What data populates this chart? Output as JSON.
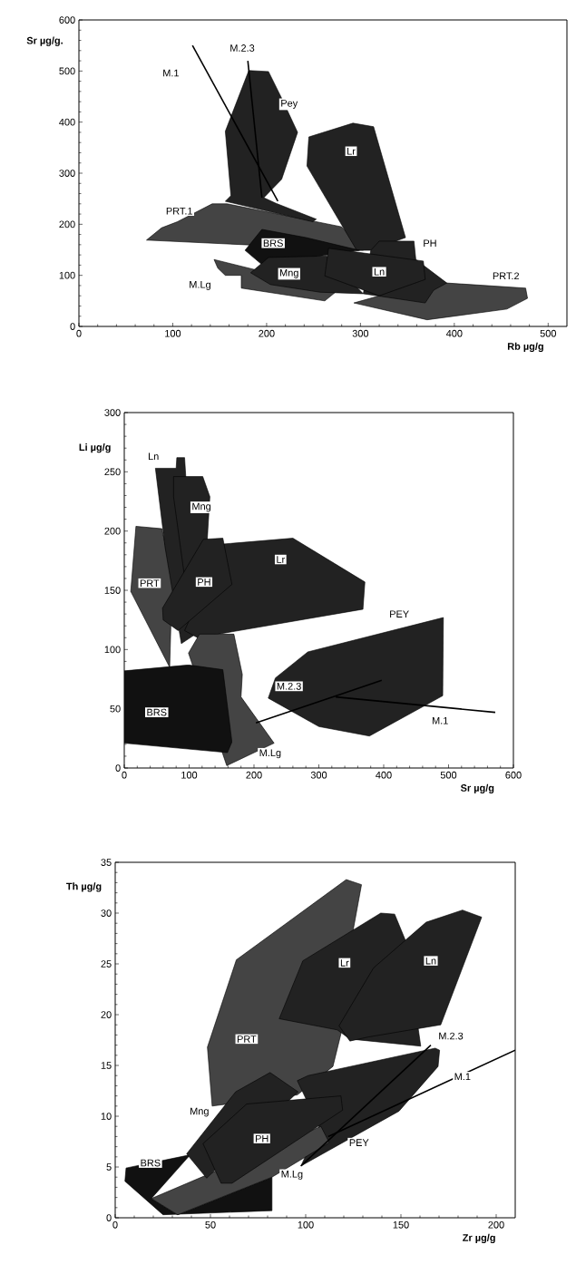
{
  "chart_data": [
    {
      "type": "area",
      "xlabel": "Rb µg/g",
      "ylabel": "Sr µg/g.",
      "xlim": [
        0,
        520
      ],
      "ylim": [
        0,
        600
      ],
      "xticks": [
        0,
        100,
        200,
        300,
        400,
        500
      ],
      "yticks": [
        0,
        100,
        200,
        300,
        400,
        500,
        600
      ],
      "series": [
        {
          "type": "area",
          "color": "#444444",
          "x": [
            293,
            320,
            392,
            476,
            478,
            456,
            371
          ],
          "values": [
            46,
            60,
            85,
            75,
            55,
            34,
            13
          ]
        },
        {
          "type": "area",
          "color": "#444444",
          "x": [
            72,
            88,
            105,
            142,
            158,
            280,
            303
          ],
          "values": [
            169,
            193,
            205,
            240,
            240,
            195,
            149
          ]
        },
        {
          "type": "area",
          "color": "#222222",
          "x": [
            156,
            181,
            202,
            216,
            233,
            216,
            197,
            210,
            253,
            249,
            156,
            162
          ],
          "values": [
            382,
            501,
            499,
            447,
            380,
            288,
            252,
            241,
            210,
            205,
            245,
            256
          ]
        },
        {
          "type": "area",
          "color": "#222222",
          "x": [
            245,
            292,
            314,
            348,
            311,
            296,
            243
          ],
          "values": [
            371,
            398,
            391,
            174,
            149,
            149,
            314
          ]
        },
        {
          "type": "area",
          "color": "#444444",
          "x": [
            144,
            148,
            156,
            173,
            173,
            262,
            276
          ],
          "values": [
            131,
            114,
            100,
            100,
            75,
            50,
            71
          ]
        },
        {
          "type": "area",
          "color": "#111111",
          "x": [
            177,
            195,
            242,
            299,
            195
          ],
          "values": [
            149,
            190,
            174,
            149,
            121
          ]
        },
        {
          "type": "area",
          "color": "#222222",
          "x": [
            183,
            202,
            264,
            303,
            257,
            204
          ],
          "values": [
            105,
            135,
            138,
            64,
            67,
            82
          ]
        },
        {
          "type": "area",
          "color": "#222222",
          "x": [
            311,
            320,
            357,
            359,
            392,
            378,
            369,
            303
          ],
          "values": [
            149,
            167,
            167,
            131,
            85,
            71,
            46,
            64
          ]
        },
        {
          "type": "area",
          "color": "#222222",
          "x": [
            266,
            367,
            369,
            320,
            262
          ],
          "values": [
            153,
            128,
            92,
            60,
            99
          ]
        },
        {
          "type": "line",
          "color": "#000000",
          "x": [
            121,
            212
          ],
          "values": [
            550,
            245
          ]
        },
        {
          "type": "line",
          "color": "#000000",
          "x": [
            180,
            195
          ],
          "values": [
            520,
            252
          ]
        }
      ],
      "annotations": [
        {
          "text": "M.1",
          "x": 98,
          "y": 496
        },
        {
          "text": "M.2.3",
          "x": 174,
          "y": 545
        },
        {
          "text": "Pey",
          "x": 224,
          "y": 435
        },
        {
          "text": "Lr",
          "x": 290,
          "y": 343
        },
        {
          "text": "PRT.1",
          "x": 107,
          "y": 226
        },
        {
          "text": "BRS",
          "x": 207,
          "y": 163
        },
        {
          "text": "PH",
          "x": 374,
          "y": 163
        },
        {
          "text": "Mng",
          "x": 224,
          "y": 103
        },
        {
          "text": "Ln",
          "x": 320,
          "y": 107
        },
        {
          "text": "M.Lg",
          "x": 129,
          "y": 80
        },
        {
          "text": "PRT.2",
          "x": 455,
          "y": 99
        }
      ]
    },
    {
      "type": "area",
      "xlabel": "Sr µg/g",
      "ylabel": "Li µg/g",
      "xlim": [
        0,
        600
      ],
      "ylim": [
        0,
        300
      ],
      "xticks": [
        0,
        100,
        200,
        300,
        400,
        500,
        600
      ],
      "yticks": [
        0,
        50,
        100,
        150,
        200,
        250,
        300
      ],
      "series": [
        {
          "type": "area",
          "color": "#444444",
          "x": [
            18,
            58,
            74,
            70,
            10
          ],
          "values": [
            204,
            202,
            161,
            85,
            149
          ]
        },
        {
          "type": "area",
          "color": "#222222",
          "x": [
            48,
            80,
            81,
            93,
            110,
            88,
            63
          ],
          "values": [
            253,
            253,
            262,
            262,
            113,
            105,
            186
          ]
        },
        {
          "type": "area",
          "color": "#222222",
          "x": [
            76,
            121,
            132,
            119,
            105,
            76
          ],
          "values": [
            246,
            246,
            229,
            113,
            113,
            229
          ]
        },
        {
          "type": "area",
          "color": "#222222",
          "x": [
            152,
            260,
            371,
            368,
            113,
            93
          ],
          "values": [
            189,
            194,
            157,
            134,
            110,
            116
          ]
        },
        {
          "type": "area",
          "color": "#222222",
          "x": [
            59,
            122,
            152,
            166,
            83,
            60
          ],
          "values": [
            135,
            193,
            194,
            155,
            116,
            125
          ]
        },
        {
          "type": "area",
          "color": "#444444",
          "x": [
            99,
            116,
            169,
            182,
            180,
            231,
            158
          ],
          "values": [
            97,
            113,
            113,
            79,
            60,
            21,
            2
          ]
        },
        {
          "type": "area",
          "color": "#111111",
          "x": [
            0,
            99,
            152,
            166,
            159,
            0
          ],
          "values": [
            82,
            87,
            83,
            22,
            13,
            21
          ]
        },
        {
          "type": "area",
          "color": "#222222",
          "x": [
            233,
            283,
            492,
            491,
            378,
            300,
            222
          ],
          "values": [
            76,
            98,
            127,
            61,
            27,
            35,
            59
          ]
        },
        {
          "type": "line",
          "color": "#000000",
          "x": [
            203,
            397
          ],
          "values": [
            38,
            74
          ]
        },
        {
          "type": "line",
          "color": "#000000",
          "x": [
            326,
            572
          ],
          "values": [
            60,
            47
          ]
        }
      ],
      "annotations": [
        {
          "text": "Ln",
          "x": 45,
          "y": 263
        },
        {
          "text": "Mng",
          "x": 119,
          "y": 220
        },
        {
          "text": "Lr",
          "x": 241,
          "y": 176
        },
        {
          "text": "PRT",
          "x": 39,
          "y": 156
        },
        {
          "text": "PH",
          "x": 123,
          "y": 157
        },
        {
          "text": "PEY",
          "x": 424,
          "y": 130
        },
        {
          "text": "M.2.3",
          "x": 254,
          "y": 69
        },
        {
          "text": "M.1",
          "x": 487,
          "y": 40
        },
        {
          "text": "BRS",
          "x": 50,
          "y": 47
        },
        {
          "text": "M.Lg",
          "x": 225,
          "y": 12
        }
      ]
    },
    {
      "type": "area",
      "xlabel": "Zr µg/g",
      "ylabel": "Th µg/g",
      "xlim": [
        0,
        210
      ],
      "ylim": [
        0,
        35
      ],
      "xticks": [
        0,
        50,
        100,
        150,
        200
      ],
      "yticks": [
        0,
        5,
        10,
        15,
        20,
        25,
        30,
        35
      ],
      "series": [
        {
          "type": "area",
          "color": "#444444",
          "x": [
            48.4,
            63.6,
            121.3,
            129.3,
            125.1,
            118.5,
            114.3,
            95.6,
            50.9
          ],
          "values": [
            16.8,
            25.4,
            33.3,
            32.8,
            28.5,
            18.1,
            14.9,
            12.1,
            11.0
          ]
        },
        {
          "type": "area",
          "color": "#222222",
          "x": [
            86.1,
            98.5,
            139.4,
            146.7,
            152.4,
            160.4,
            123.2,
            116.6
          ],
          "values": [
            19.6,
            25.3,
            30.0,
            29.9,
            27.3,
            16.9,
            17.6,
            18.5
          ]
        },
        {
          "type": "area",
          "color": "#222222",
          "x": [
            117.5,
            135.6,
            163.2,
            182.3,
            192.4,
            170.9,
            132.8,
            123.2
          ],
          "values": [
            18.9,
            24.6,
            29.1,
            30.3,
            29.6,
            19.0,
            17.8,
            17.4
          ]
        },
        {
          "type": "area",
          "color": "#222222",
          "x": [
            95.6,
            101.3,
            168,
            170.3,
            169.5,
            149,
            97.5,
            107
          ],
          "values": [
            13.5,
            14.0,
            16.7,
            16.5,
            14.9,
            10.5,
            5.1,
            9.0
          ]
        },
        {
          "type": "area",
          "color": "#111111",
          "x": [
            5.1,
            5.7,
            29,
            39.4,
            19,
            32.8,
            82.3,
            82.3,
            25.1
          ],
          "values": [
            3.6,
            4.9,
            5.8,
            6.2,
            1.9,
            0.3,
            4.0,
            0.7,
            0.3
          ]
        },
        {
          "type": "area",
          "color": "#444444",
          "x": [
            19,
            108,
            112.4,
            82.3,
            32.8
          ],
          "values": [
            1.9,
            9.0,
            7.4,
            4.0,
            0.3
          ]
        },
        {
          "type": "area",
          "color": "#222222",
          "x": [
            37.5,
            63.2,
            81.3,
            96,
            48
          ],
          "values": [
            6.3,
            12.4,
            14.3,
            12.4,
            3.9
          ]
        },
        {
          "type": "area",
          "color": "#222222",
          "x": [
            46.1,
            69,
            118.5,
            119.4,
            61.3,
            55.6
          ],
          "values": [
            7.3,
            11.2,
            12.0,
            10.6,
            3.4,
            3.4
          ]
        },
        {
          "type": "line",
          "color": "#000000",
          "x": [
            97.5,
            165.7
          ],
          "values": [
            5.1,
            17.0
          ]
        },
        {
          "type": "line",
          "color": "#000000",
          "x": [
            111.8,
            210
          ],
          "values": [
            8.0,
            16.5
          ]
        }
      ],
      "annotations": [
        {
          "text": "Lr",
          "x": 120.4,
          "y": 25.1
        },
        {
          "text": "Ln",
          "x": 165.7,
          "y": 25.3
        },
        {
          "text": "PRT",
          "x": 69,
          "y": 17.6
        },
        {
          "text": "M.2.3",
          "x": 176.2,
          "y": 17.9
        },
        {
          "text": "M.1",
          "x": 182.3,
          "y": 13.9
        },
        {
          "text": "Mng",
          "x": 44.2,
          "y": 10.4
        },
        {
          "text": "PH",
          "x": 77,
          "y": 7.8
        },
        {
          "text": "PEY",
          "x": 128,
          "y": 7.4
        },
        {
          "text": "BRS",
          "x": 18.5,
          "y": 5.4
        },
        {
          "text": "M.Lg",
          "x": 92.8,
          "y": 4.2
        }
      ]
    }
  ]
}
